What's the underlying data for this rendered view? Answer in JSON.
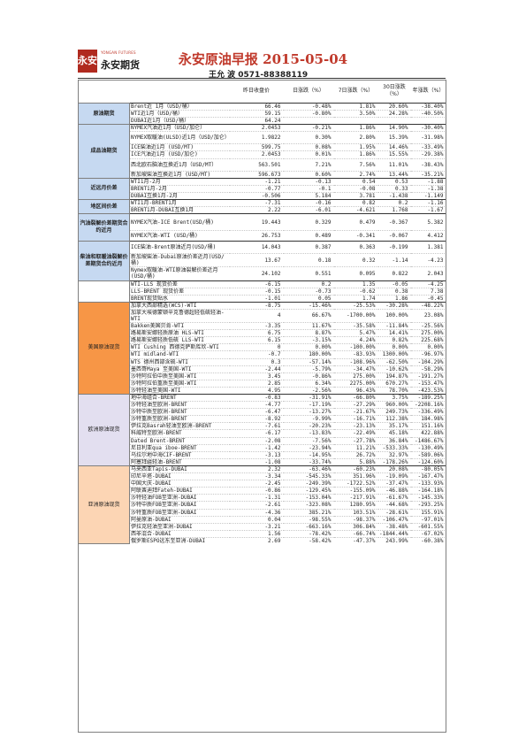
{
  "header": {
    "logo_mark": "永安",
    "logo_en": "YONGAN FUTURES",
    "logo_cn": "永安期货",
    "title": "永安原油早报 2015-05-04",
    "author": "王允 波 0571-88388119"
  },
  "columns": [
    "",
    "",
    "昨日收盘价",
    "日涨跌（%）",
    "7日涨跌（%）",
    "30日涨跌（%）",
    "年涨跌（%）"
  ],
  "groups": [
    {
      "name": "原油期货",
      "style": "blue",
      "rows": [
        [
          "Brent近 1月（USD/桶）",
          "66.46",
          "-0.48%",
          "1.81%",
          "20.60%",
          "-38.40%"
        ],
        [
          "WTI近1月（USD/桶）",
          "59.15",
          "-0.80%",
          "3.50%",
          "24.28%",
          "-40.50%"
        ],
        [
          "DUBAI近1月（USD/桶）",
          "64.24",
          "",
          "",
          "",
          ""
        ]
      ]
    },
    {
      "name": "成品油期货",
      "style": "blue",
      "rows": [
        [
          "NYMEX汽油近1月（USD/加仑）",
          "2.0453",
          "-0.21%",
          "1.86%",
          "14.90%",
          "-30.40%"
        ],
        [
          "NYMEX取暖油(ULSD)近1月（USD/加仑）",
          "1.9822",
          "0.30%",
          "2.80%",
          "15.39%",
          "-31.98%"
        ],
        [
          "ICE柴油近1月 (USD/MT)",
          "599.75",
          "0.08%",
          "1.95%",
          "14.46%",
          "-33.49%"
        ],
        [
          "ICE汽油近1月 (USD/加仑)",
          "2.0453",
          "0.01%",
          "1.86%",
          "15.55%",
          "-29.38%"
        ],
        [
          "西北欧石脑油互换近1月（USD/MT）",
          "563.501",
          "7.21%",
          "7.56%",
          "11.01%",
          "-38.43%"
        ],
        [
          "新加坡柴油互换近1月 (USD/MT)",
          "596.673",
          "0.60%",
          "2.74%",
          "13.44%",
          "-35.21%"
        ]
      ]
    },
    {
      "name": "近远月价差",
      "style": "blue",
      "rows": [
        [
          "WTI1月-2月",
          "-1.21",
          "-0.13",
          "0.54",
          "0.53",
          "-1.88"
        ],
        [
          "BRENT1月-2月",
          "-0.77",
          "-0.1",
          "-0.08",
          "0.33",
          "-1.38"
        ],
        [
          "DUBAI互换1月-2月",
          "-0.506",
          "5.184",
          "3.781",
          "-1.438",
          "-1.149"
        ]
      ]
    },
    {
      "name": "地区间价差",
      "style": "blue",
      "rows": [
        [
          "WTI1月-BRENT1月",
          "-7.31",
          "-0.16",
          "0.82",
          "0.2",
          "-1.16"
        ],
        [
          "BRENT1月-DUBAI互换1月",
          "2.22",
          "-6.01",
          "-4.621",
          "1.768",
          "-1.67"
        ]
      ]
    },
    {
      "name": "汽油裂解价差期货合约近月",
      "style": "blue",
      "rows": [
        [
          "NYMEX汽油-ICE Brent(USD/桶)",
          "19.443",
          "0.329",
          "0.479",
          "-0.367",
          "5.382"
        ],
        [
          "NYMEX汽油-WTI (USD/桶)",
          "26.753",
          "0.489",
          "-0.341",
          "-0.067",
          "4.412"
        ]
      ]
    },
    {
      "name": "柴油和取暖油裂解价差期货合约近月",
      "style": "blue",
      "rows": [
        [
          "ICE柴油-Brent原油近月(USD/桶)",
          "14.043",
          "0.387",
          "0.363",
          "-0.199",
          "1.381"
        ],
        [
          "新加坡柴油-Dubai原油价差近月(USD/桶)",
          "13.67",
          "0.18",
          "0.32",
          "-1.14",
          "-4.23"
        ],
        [
          "Nymex取暖油-WTI原油裂解价差近月(USD/桶)",
          "24.102",
          "0.551",
          "0.095",
          "0.822",
          "2.043"
        ]
      ]
    },
    {
      "name": "",
      "style": "none",
      "rows": [
        [
          "WTI-LLS 现货价差",
          "-6.15",
          "0.2",
          "1.35",
          "-0.05",
          "-4.25"
        ],
        [
          "LLS-BRENT 现货价差",
          "-0.15",
          "-0.73",
          "-0.62",
          "0.38",
          "7.38"
        ],
        [
          "BRENT现货贴水",
          "-1.01",
          "0.05",
          "1.74",
          "1.86",
          "-0.45"
        ]
      ]
    },
    {
      "name": "美国原油现货",
      "style": "orange",
      "rows": [
        [
          "加拿大西部精选(WCS)-WTI",
          "-8.75",
          "-15.46%",
          "-25.53%",
          "-30.28%",
          "-48.22%"
        ],
        [
          "加拿大埃德蒙顿辛克鲁德超轻低硫轻油-WTI",
          "4",
          "66.67%",
          "-1700.00%",
          "100.00%",
          "23.08%"
        ],
        [
          "Bakken美国贝肯-WTI",
          "-3.35",
          "11.67%",
          "-35.58%",
          "-11.84%",
          "-25.56%"
        ],
        [
          "路易斯安娜轻质原油 HLS-WTI",
          "6.75",
          "8.87%",
          "5.47%",
          "14.41%",
          "275.00%"
        ],
        [
          "路易斯安娜轻质低硫 LLS-WTI",
          "6.15",
          "-3.15%",
          "4.24%",
          "0.82%",
          "225.68%"
        ],
        [
          "WTI Cushing 西德克萨斯库欣-WTI",
          "0",
          "0.00%",
          "-100.00%",
          "0.00%",
          "0.00%"
        ],
        [
          "WTI midland-WTI",
          "-0.7",
          "180.00%",
          "-83.93%",
          "1300.00%",
          "-96.97%"
        ],
        [
          "WTS 德州西部含硫-WTI",
          "0.3",
          "-57.14%",
          "-108.96%",
          "-62.50%",
          "-104.29%"
        ],
        [
          "墨西哥Maya 至美国-WTI",
          "-2.44",
          "-5.79%",
          "-34.47%",
          "-10.62%",
          "-58.29%"
        ],
        [
          "沙特阿拉伯中质至美国-WTI",
          "3.45",
          "-0.86%",
          "275.00%",
          "194.87%",
          "-191.27%"
        ],
        [
          "沙特阿拉伯重质至美国-WTI",
          "2.85",
          "6.34%",
          "2275.00%",
          "670.27%",
          "-153.47%"
        ],
        [
          "沙特轻油至美国-WTI",
          "4.95",
          "-2.56%",
          "96.43%",
          "78.70%",
          "-423.53%"
        ]
      ]
    },
    {
      "name": "欧洲原油现货",
      "style": "lavender",
      "rows": [
        [
          "地中海组合-BRENT",
          "-0.83",
          "-31.91%",
          "-66.80%",
          "3.75%",
          "-189.25%"
        ],
        [
          "沙特轻油至欧洲-BRENT",
          "-4.77",
          "-17.19%",
          "-27.29%",
          "960.00%",
          "-2208.16%"
        ],
        [
          "沙特中质至欧洲-BRENT",
          "-6.47",
          "-13.27%",
          "-21.67%",
          "249.73%",
          "-336.49%"
        ],
        [
          "沙特重质至欧洲-BRENT",
          "-8.92",
          "-9.99%",
          "-16.71%",
          "112.38%",
          "184.98%"
        ],
        [
          "伊拉克Basrah轻油至欧洲-BRENT",
          "-7.61",
          "-20.23%",
          "-23.13%",
          "35.17%",
          "151.16%"
        ],
        [
          "科威特至欧洲-BRENT",
          "-6.17",
          "-13.83%",
          "-22.49%",
          "45.18%",
          "422.88%"
        ],
        [
          "Dated Brent-BRENT",
          "-2.08",
          "-7.56%",
          "-27.78%",
          "36.84%",
          "-1486.67%"
        ],
        [
          "尼日利亚qua iboe-BRENT",
          "-1.42",
          "-23.94%",
          "11.21%",
          "-533.33%",
          "-130.49%"
        ],
        [
          "乌拉尔地中海CIF-BRENT",
          "-3.13",
          "-14.95%",
          "26.72%",
          "32.97%",
          "-589.06%"
        ],
        [
          "阿塞拜疆轻油-BRENT",
          "-1.08",
          "-33.74%",
          "5.88%",
          "-178.26%",
          "-124.60%"
        ]
      ]
    },
    {
      "name": "亚洲原油现货",
      "style": "peach",
      "rows": [
        [
          "马来西亚Tapis-DUBAI",
          "2.32",
          "-63.46%",
          "-60.23%",
          "20.08%",
          "-80.05%"
        ],
        [
          "印尼辛塔-DUBAI",
          "-3.34",
          "-545.33%",
          "351.96%",
          "-19.09%",
          "-167.47%"
        ],
        [
          "中国大庆-DUBAI",
          "-2.45",
          "-249.39%",
          "-1722.52%",
          "-37.47%",
          "-133.93%"
        ],
        [
          "阿联酋迪拜Fateh-DUBAI",
          "-0.86",
          "-129.45%",
          "-155.09%",
          "-46.88%",
          "-164.18%"
        ],
        [
          "沙特轻油FOB至亚洲-DUBAI",
          "-1.31",
          "-153.04%",
          "-217.91%",
          "-61.67%",
          "-145.33%"
        ],
        [
          "沙特中质FOB至亚洲-DUBAI",
          "-2.61",
          "-323.08%",
          "1280.95%",
          "-44.68%",
          "-293.25%"
        ],
        [
          "沙特重质FOB至亚洲-DUBAI",
          "-4.36",
          "385.21%",
          "103.51%",
          "-28.61%",
          "155.91%"
        ],
        [
          "阿曼原油-DUBAI",
          "0.04",
          "-98.55%",
          "-98.37%",
          "-106.47%",
          "-97.01%"
        ],
        [
          "伊拉克轻油至亚洲-DUBAI",
          "-3.21",
          "-663.16%",
          "306.84%",
          "-38.48%",
          "-601.55%"
        ],
        [
          "西非混合-DUBAI",
          "1.56",
          "-78.42%",
          "-66.74%",
          "-1844.44%",
          "-67.02%"
        ],
        [
          "俄罗斯ESPO远东至亚洲-DUBAI",
          "2.69",
          "-58.42%",
          "-47.37%",
          "243.99%",
          "-60.38%"
        ]
      ]
    }
  ]
}
